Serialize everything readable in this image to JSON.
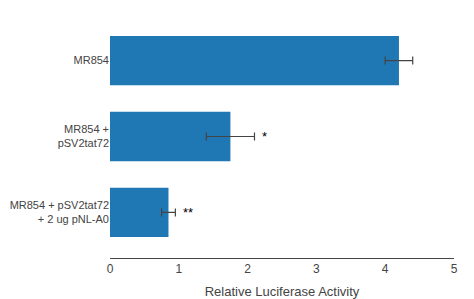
{
  "chart_data": {
    "type": "bar",
    "orientation": "horizontal",
    "categories": [
      "MR854 + pSV2tat72\n+ 2 ug pNL-A0",
      "MR854 +\npSV2tat72",
      "MR854"
    ],
    "values": [
      0.85,
      1.75,
      4.2
    ],
    "errors": [
      0.1,
      0.35,
      0.2
    ],
    "annotations": [
      "**",
      "*",
      null
    ],
    "xlabel": "Relative Luciferase Activity",
    "xlim": [
      0,
      5
    ],
    "xticks": [
      0,
      1,
      2,
      3,
      4,
      5
    ],
    "grid": false
  }
}
